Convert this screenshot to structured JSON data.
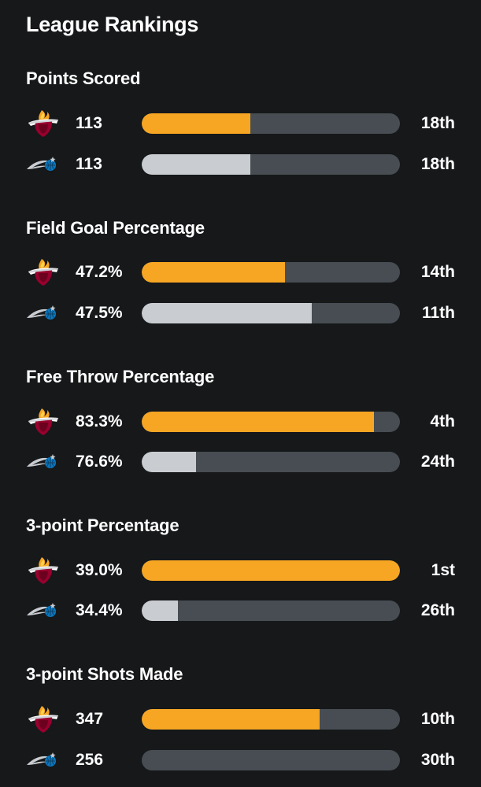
{
  "title": "League Rankings",
  "colors": {
    "background": "#16181a",
    "heat_bar": "#f6a623",
    "magic_bar": "#c9ccd0",
    "track": "#474d52"
  },
  "teams": {
    "heat": {
      "logo_icon": "miami-heat-logo-icon"
    },
    "magic": {
      "logo_icon": "orlando-magic-logo-icon"
    }
  },
  "stats": [
    {
      "label": "Points Scored",
      "heat": {
        "value": "113",
        "rank": "18th",
        "fill": 0.42
      },
      "magic": {
        "value": "113",
        "rank": "18th",
        "fill": 0.42
      }
    },
    {
      "label": "Field Goal Percentage",
      "heat": {
        "value": "47.2%",
        "rank": "14th",
        "fill": 0.555
      },
      "magic": {
        "value": "47.5%",
        "rank": "11th",
        "fill": 0.66
      }
    },
    {
      "label": "Free Throw Percentage",
      "heat": {
        "value": "83.3%",
        "rank": "4th",
        "fill": 0.9
      },
      "magic": {
        "value": "76.6%",
        "rank": "24th",
        "fill": 0.21
      }
    },
    {
      "label": "3-point Percentage",
      "heat": {
        "value": "39.0%",
        "rank": "1st",
        "fill": 1.0
      },
      "magic": {
        "value": "34.4%",
        "rank": "26th",
        "fill": 0.14
      }
    },
    {
      "label": "3-point Shots Made",
      "heat": {
        "value": "347",
        "rank": "10th",
        "fill": 0.69
      },
      "magic": {
        "value": "256",
        "rank": "30th",
        "fill": 0.0
      }
    }
  ]
}
